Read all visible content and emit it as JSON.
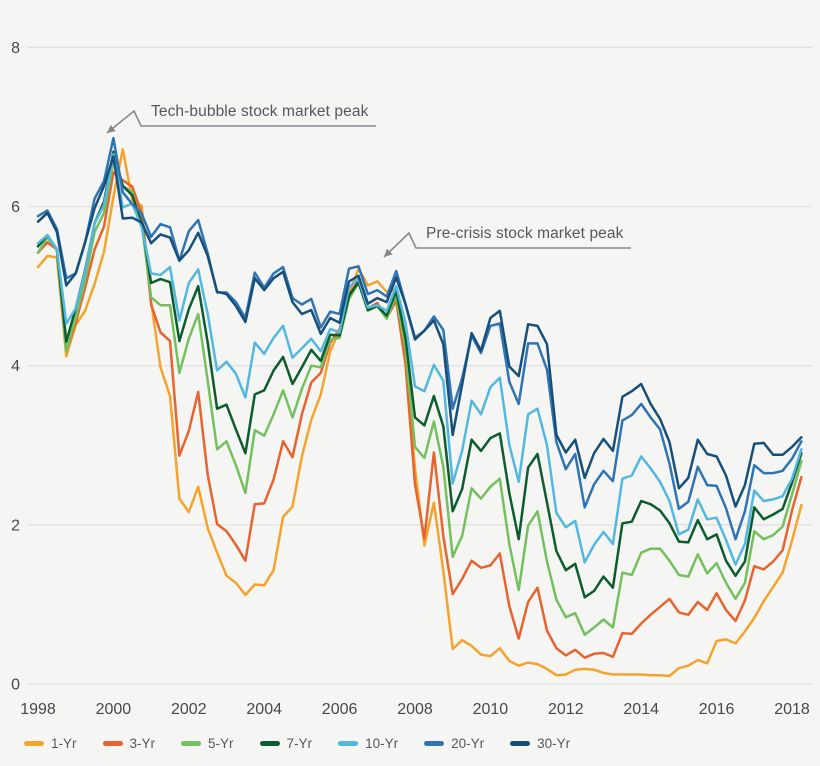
{
  "colors": {
    "background": "#F5F5F3",
    "gridline": "#DBDBD9",
    "axis_text": "#45494D",
    "annotation_text": "#54585C",
    "annotation_arrow": "#85898C"
  },
  "annotations": {
    "tech_bubble": {
      "label": "Tech-bubble stock market peak"
    },
    "pre_crisis": {
      "label": "Pre-crisis stock market peak"
    }
  },
  "chart_data": {
    "type": "line",
    "title": "",
    "xlabel": "",
    "ylabel": "",
    "xlim": [
      1997.9,
      2018.6
    ],
    "ylim": [
      0,
      8
    ],
    "grid": "horizontal",
    "legend_position": "bottom-left",
    "x_axis_ticks": [
      "1998",
      "2000",
      "2002",
      "2004",
      "2006",
      "2008",
      "2010",
      "2012",
      "2014",
      "2016",
      "2018"
    ],
    "y_axis_ticks": [
      "0",
      "2",
      "4",
      "6",
      "8"
    ],
    "x_start": 1998.0,
    "x_step": 0.25,
    "series": [
      {
        "name": "1-Yr",
        "color": "#F4A32C",
        "values": [
          5.24,
          5.38,
          5.36,
          4.12,
          4.51,
          4.69,
          5.03,
          5.43,
          6.12,
          6.72,
          6.08,
          6.01,
          4.81,
          3.98,
          3.62,
          2.33,
          2.16,
          2.48,
          1.96,
          1.65,
          1.36,
          1.27,
          1.12,
          1.25,
          1.24,
          1.43,
          2.1,
          2.23,
          2.86,
          3.32,
          3.64,
          4.18,
          4.45,
          4.9,
          5.22,
          5.01,
          5.06,
          4.93,
          4.96,
          4.1,
          2.71,
          1.74,
          2.28,
          1.42,
          0.44,
          0.55,
          0.48,
          0.37,
          0.35,
          0.45,
          0.29,
          0.23,
          0.27,
          0.25,
          0.19,
          0.11,
          0.12,
          0.18,
          0.19,
          0.18,
          0.14,
          0.12,
          0.12,
          0.12,
          0.12,
          0.11,
          0.11,
          0.1,
          0.2,
          0.23,
          0.3,
          0.26,
          0.54,
          0.56,
          0.51,
          0.66,
          0.83,
          1.04,
          1.22,
          1.4,
          1.8,
          2.25
        ]
      },
      {
        "name": "3-Yr",
        "color": "#E7642E",
        "values": [
          5.42,
          5.55,
          5.46,
          4.18,
          4.54,
          4.98,
          5.46,
          5.75,
          6.43,
          6.33,
          6.25,
          5.91,
          4.77,
          4.42,
          4.31,
          2.87,
          3.18,
          3.67,
          2.63,
          2.01,
          1.92,
          1.75,
          1.55,
          2.26,
          2.27,
          2.57,
          3.05,
          2.85,
          3.39,
          3.79,
          3.91,
          4.29,
          4.46,
          4.89,
          5.07,
          4.72,
          4.79,
          4.6,
          4.82,
          4.01,
          2.51,
          1.83,
          2.91,
          1.86,
          1.13,
          1.32,
          1.55,
          1.46,
          1.49,
          1.64,
          0.98,
          0.57,
          1.03,
          1.21,
          0.67,
          0.45,
          0.36,
          0.43,
          0.33,
          0.38,
          0.39,
          0.34,
          0.64,
          0.63,
          0.76,
          0.87,
          0.97,
          1.07,
          0.9,
          0.87,
          1.03,
          0.93,
          1.14,
          0.93,
          0.79,
          1.05,
          1.48,
          1.44,
          1.54,
          1.68,
          2.18,
          2.6
        ]
      },
      {
        "name": "5-Yr",
        "color": "#74C05F",
        "values": [
          5.42,
          5.61,
          5.46,
          4.18,
          4.6,
          5.08,
          5.68,
          5.92,
          6.58,
          6.26,
          6.18,
          5.78,
          4.86,
          4.76,
          4.76,
          3.91,
          4.34,
          4.65,
          3.81,
          2.95,
          3.05,
          2.75,
          2.4,
          3.19,
          3.12,
          3.39,
          3.69,
          3.35,
          3.71,
          4.0,
          3.98,
          4.33,
          4.35,
          4.84,
          5.04,
          4.69,
          4.75,
          4.59,
          4.88,
          4.2,
          2.98,
          2.84,
          3.3,
          2.73,
          1.6,
          1.86,
          2.46,
          2.33,
          2.48,
          2.58,
          1.76,
          1.18,
          1.99,
          2.17,
          1.54,
          1.06,
          0.84,
          0.89,
          0.62,
          0.71,
          0.81,
          0.71,
          1.4,
          1.37,
          1.65,
          1.7,
          1.7,
          1.55,
          1.37,
          1.35,
          1.63,
          1.39,
          1.52,
          1.27,
          1.07,
          1.27,
          1.92,
          1.82,
          1.87,
          1.98,
          2.38,
          2.8
        ]
      },
      {
        "name": "7-Yr",
        "color": "#0C5C2E",
        "values": [
          5.5,
          5.64,
          5.46,
          4.3,
          4.72,
          5.2,
          5.79,
          6.06,
          6.69,
          6.26,
          6.14,
          5.79,
          5.04,
          5.09,
          5.05,
          4.31,
          4.71,
          5.0,
          4.29,
          3.46,
          3.51,
          3.2,
          2.9,
          3.64,
          3.69,
          3.94,
          4.11,
          3.77,
          3.98,
          4.2,
          4.06,
          4.39,
          4.38,
          4.88,
          5.05,
          4.7,
          4.75,
          4.63,
          4.94,
          4.34,
          3.35,
          3.25,
          3.62,
          3.24,
          2.17,
          2.45,
          3.07,
          2.93,
          3.09,
          3.15,
          2.4,
          1.82,
          2.72,
          2.89,
          2.28,
          1.67,
          1.43,
          1.51,
          1.09,
          1.17,
          1.35,
          1.21,
          2.02,
          2.04,
          2.3,
          2.26,
          2.18,
          2.02,
          1.79,
          1.78,
          2.06,
          1.82,
          1.88,
          1.55,
          1.36,
          1.54,
          2.22,
          2.07,
          2.13,
          2.2,
          2.53,
          2.9
        ]
      },
      {
        "name": "10-Yr",
        "color": "#52B8E0",
        "values": [
          5.54,
          5.64,
          5.46,
          4.53,
          4.72,
          5.18,
          5.79,
          6.02,
          6.66,
          5.99,
          6.04,
          5.74,
          5.16,
          5.14,
          5.24,
          4.57,
          5.04,
          5.21,
          4.65,
          3.94,
          4.05,
          3.9,
          3.6,
          4.29,
          4.15,
          4.35,
          4.5,
          4.1,
          4.22,
          4.34,
          4.18,
          4.46,
          4.42,
          4.99,
          5.09,
          4.73,
          4.76,
          4.69,
          5.0,
          4.53,
          3.74,
          3.68,
          4.01,
          3.81,
          2.52,
          2.93,
          3.56,
          3.39,
          3.73,
          3.85,
          3.01,
          2.54,
          3.39,
          3.46,
          3.0,
          2.15,
          1.97,
          2.05,
          1.53,
          1.75,
          1.91,
          1.76,
          2.58,
          2.62,
          2.86,
          2.71,
          2.54,
          2.3,
          1.88,
          1.94,
          2.32,
          2.07,
          2.09,
          1.81,
          1.5,
          1.76,
          2.43,
          2.3,
          2.32,
          2.36,
          2.58,
          2.95
        ]
      },
      {
        "name": "20-Yr",
        "color": "#2E74B5",
        "values": [
          5.88,
          5.95,
          5.72,
          5.1,
          5.16,
          5.55,
          6.1,
          6.32,
          6.86,
          6.18,
          6.03,
          5.91,
          5.62,
          5.78,
          5.74,
          5.32,
          5.69,
          5.83,
          5.41,
          4.92,
          4.92,
          4.8,
          4.6,
          5.17,
          4.98,
          5.16,
          5.24,
          4.85,
          4.77,
          4.84,
          4.48,
          4.68,
          4.65,
          5.22,
          5.25,
          4.9,
          4.95,
          4.87,
          5.19,
          4.77,
          4.35,
          4.44,
          4.62,
          4.45,
          3.46,
          3.84,
          4.38,
          4.16,
          4.5,
          4.53,
          3.8,
          3.52,
          4.28,
          4.28,
          3.95,
          3.04,
          2.7,
          2.89,
          2.22,
          2.51,
          2.68,
          2.55,
          3.31,
          3.38,
          3.52,
          3.35,
          3.2,
          2.77,
          2.2,
          2.29,
          2.73,
          2.5,
          2.49,
          2.21,
          1.82,
          2.17,
          2.75,
          2.65,
          2.65,
          2.68,
          2.83,
          3.05
        ]
      },
      {
        "name": "30-Yr",
        "color": "#16507A",
        "values": [
          5.81,
          5.92,
          5.68,
          5.01,
          5.16,
          5.55,
          5.98,
          6.26,
          6.63,
          5.85,
          5.86,
          5.8,
          5.54,
          5.65,
          5.61,
          5.32,
          5.45,
          5.67,
          5.38,
          4.93,
          4.9,
          4.75,
          4.55,
          5.1,
          4.95,
          5.1,
          5.18,
          4.8,
          4.65,
          4.7,
          4.4,
          4.6,
          4.54,
          5.06,
          5.13,
          4.78,
          4.85,
          4.8,
          5.11,
          4.77,
          4.33,
          4.44,
          4.57,
          4.27,
          3.13,
          3.76,
          4.41,
          4.19,
          4.6,
          4.69,
          3.99,
          3.87,
          4.52,
          4.5,
          4.27,
          3.13,
          2.91,
          3.07,
          2.59,
          2.9,
          3.08,
          2.93,
          3.61,
          3.68,
          3.77,
          3.52,
          3.33,
          3.04,
          2.46,
          2.59,
          3.07,
          2.89,
          2.86,
          2.62,
          2.23,
          2.5,
          3.02,
          3.03,
          2.88,
          2.88,
          2.98,
          3.1
        ]
      }
    ]
  }
}
